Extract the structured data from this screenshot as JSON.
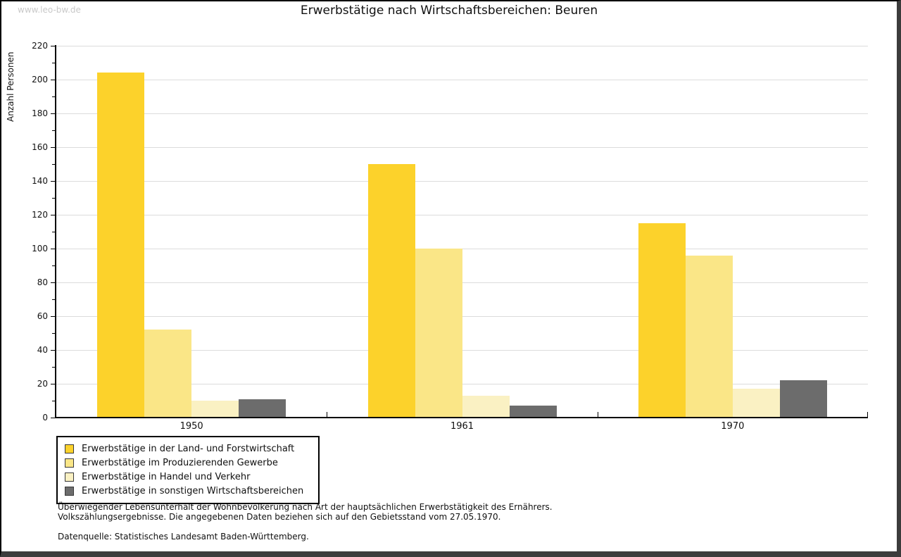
{
  "watermark": "www.leo-bw.de",
  "title": "Erwerbstätige nach Wirtschaftsbereichen: Beuren",
  "chart_data": {
    "type": "bar",
    "title": "Erwerbstätige nach Wirtschaftsbereichen: Beuren",
    "xlabel": "",
    "ylabel": "Anzahl Personen",
    "ylim": [
      0,
      220
    ],
    "ytick_step": 20,
    "ytick_minor_step": 10,
    "grid": true,
    "legend_position": "bottom-left",
    "categories": [
      "1950",
      "1961",
      "1970"
    ],
    "series": [
      {
        "name": "Erwerbstätige in der Land- und Forstwirtschaft",
        "color": "#FCD22B",
        "values": [
          204,
          150,
          115
        ]
      },
      {
        "name": "Erwerbstätige im Produzierenden Gewerbe",
        "color": "#FAE687",
        "values": [
          52,
          100,
          96
        ]
      },
      {
        "name": "Erwerbstätige in Handel und Verkehr",
        "color": "#FAF1C3",
        "values": [
          10,
          13,
          17
        ]
      },
      {
        "name": "Erwerbstätige in sonstigen Wirtschaftsbereichen",
        "color": "#6C6C6C",
        "values": [
          11,
          7,
          22
        ]
      }
    ],
    "colors": {
      "axis": "#000000",
      "grid": "#dcdcdc",
      "watermark": "#c9c9c9"
    }
  },
  "footer": {
    "note_line1": "Überwiegender Lebensunterhalt der Wohnbevölkerung nach Art der hauptsächlichen Erwerbstätigkeit des Ernährers.",
    "note_line2": "Volkszählungsergebnisse. Die angegebenen Daten beziehen sich auf den Gebietsstand vom 27.05.1970.",
    "source": "Datenquelle: Statistisches Landesamt Baden-Württemberg."
  }
}
